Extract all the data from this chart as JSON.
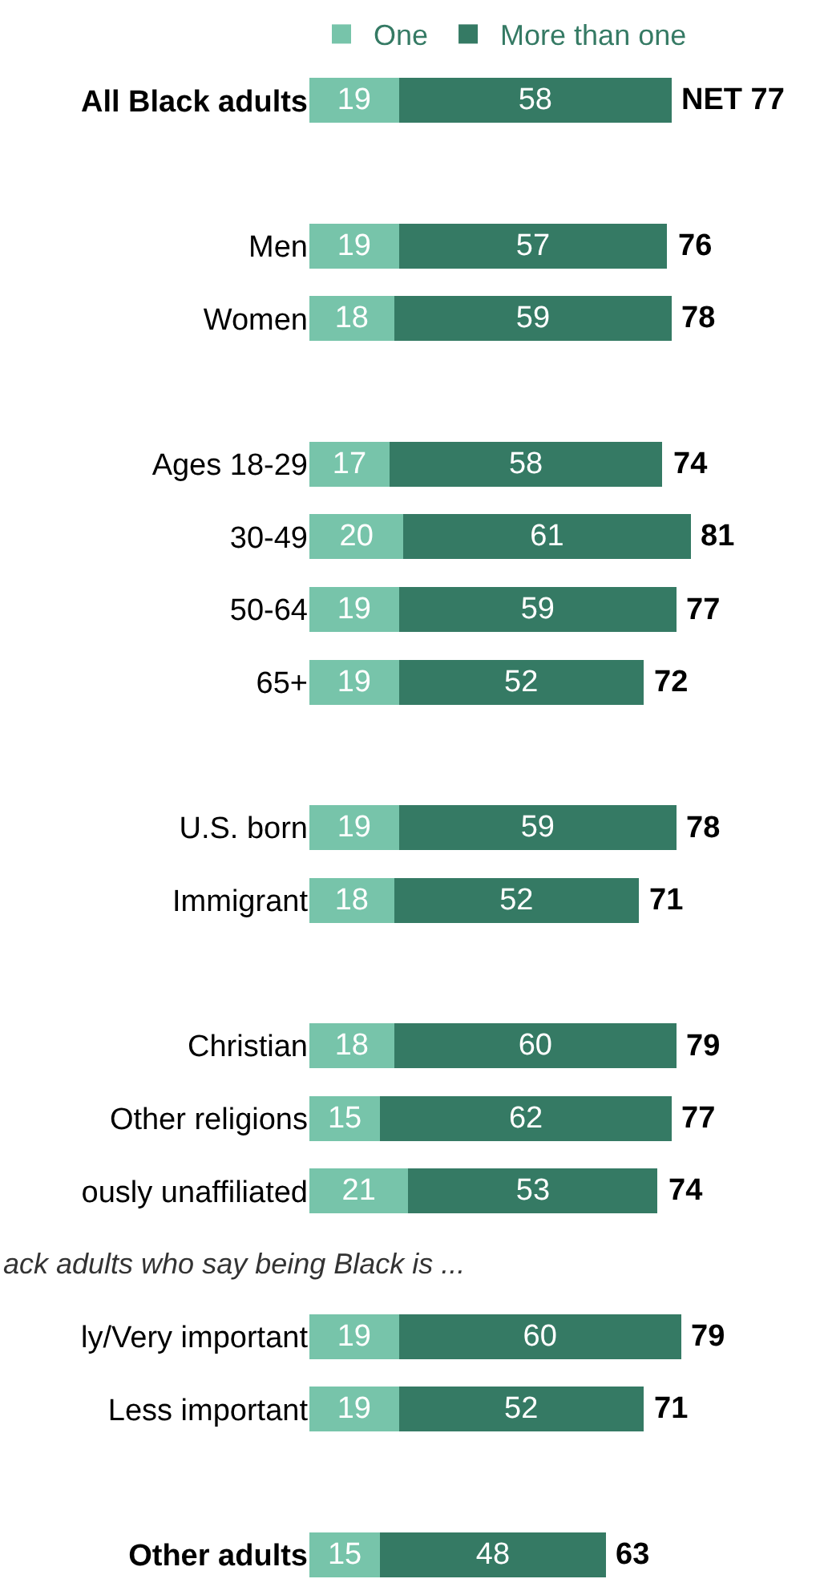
{
  "chart_data": {
    "type": "bar",
    "orientation": "horizontal",
    "stacked": true,
    "data_labels": true,
    "legend": "top",
    "categories": [
      "All Black adults",
      null,
      "Men",
      "Women",
      null,
      "Ages 18-29",
      "30-49",
      "50-64",
      "65+",
      null,
      "U.S. born",
      "Immigrant",
      null,
      "Christian",
      "Other religions",
      "ously unaffiliated",
      null,
      "ly/Very important",
      "Less important",
      null,
      "Other adults"
    ],
    "series": [
      {
        "name": "One",
        "color": "#77c4aa",
        "values": [
          19,
          null,
          19,
          18,
          null,
          17,
          20,
          19,
          19,
          null,
          19,
          18,
          null,
          18,
          15,
          21,
          null,
          19,
          19,
          null,
          15
        ]
      },
      {
        "name": "More than one",
        "color": "#357a64",
        "values": [
          58,
          null,
          57,
          59,
          null,
          58,
          61,
          59,
          52,
          null,
          59,
          52,
          null,
          60,
          62,
          53,
          null,
          60,
          52,
          null,
          48
        ]
      }
    ],
    "totals": [
      "NET 77",
      null,
      "76",
      "78",
      null,
      "74",
      "81",
      "77",
      "72",
      null,
      "78",
      "71",
      null,
      "79",
      "77",
      "74",
      null,
      "79",
      "71",
      null,
      "63"
    ],
    "annotations": [
      "ack adults who say being Black is ..."
    ]
  }
}
